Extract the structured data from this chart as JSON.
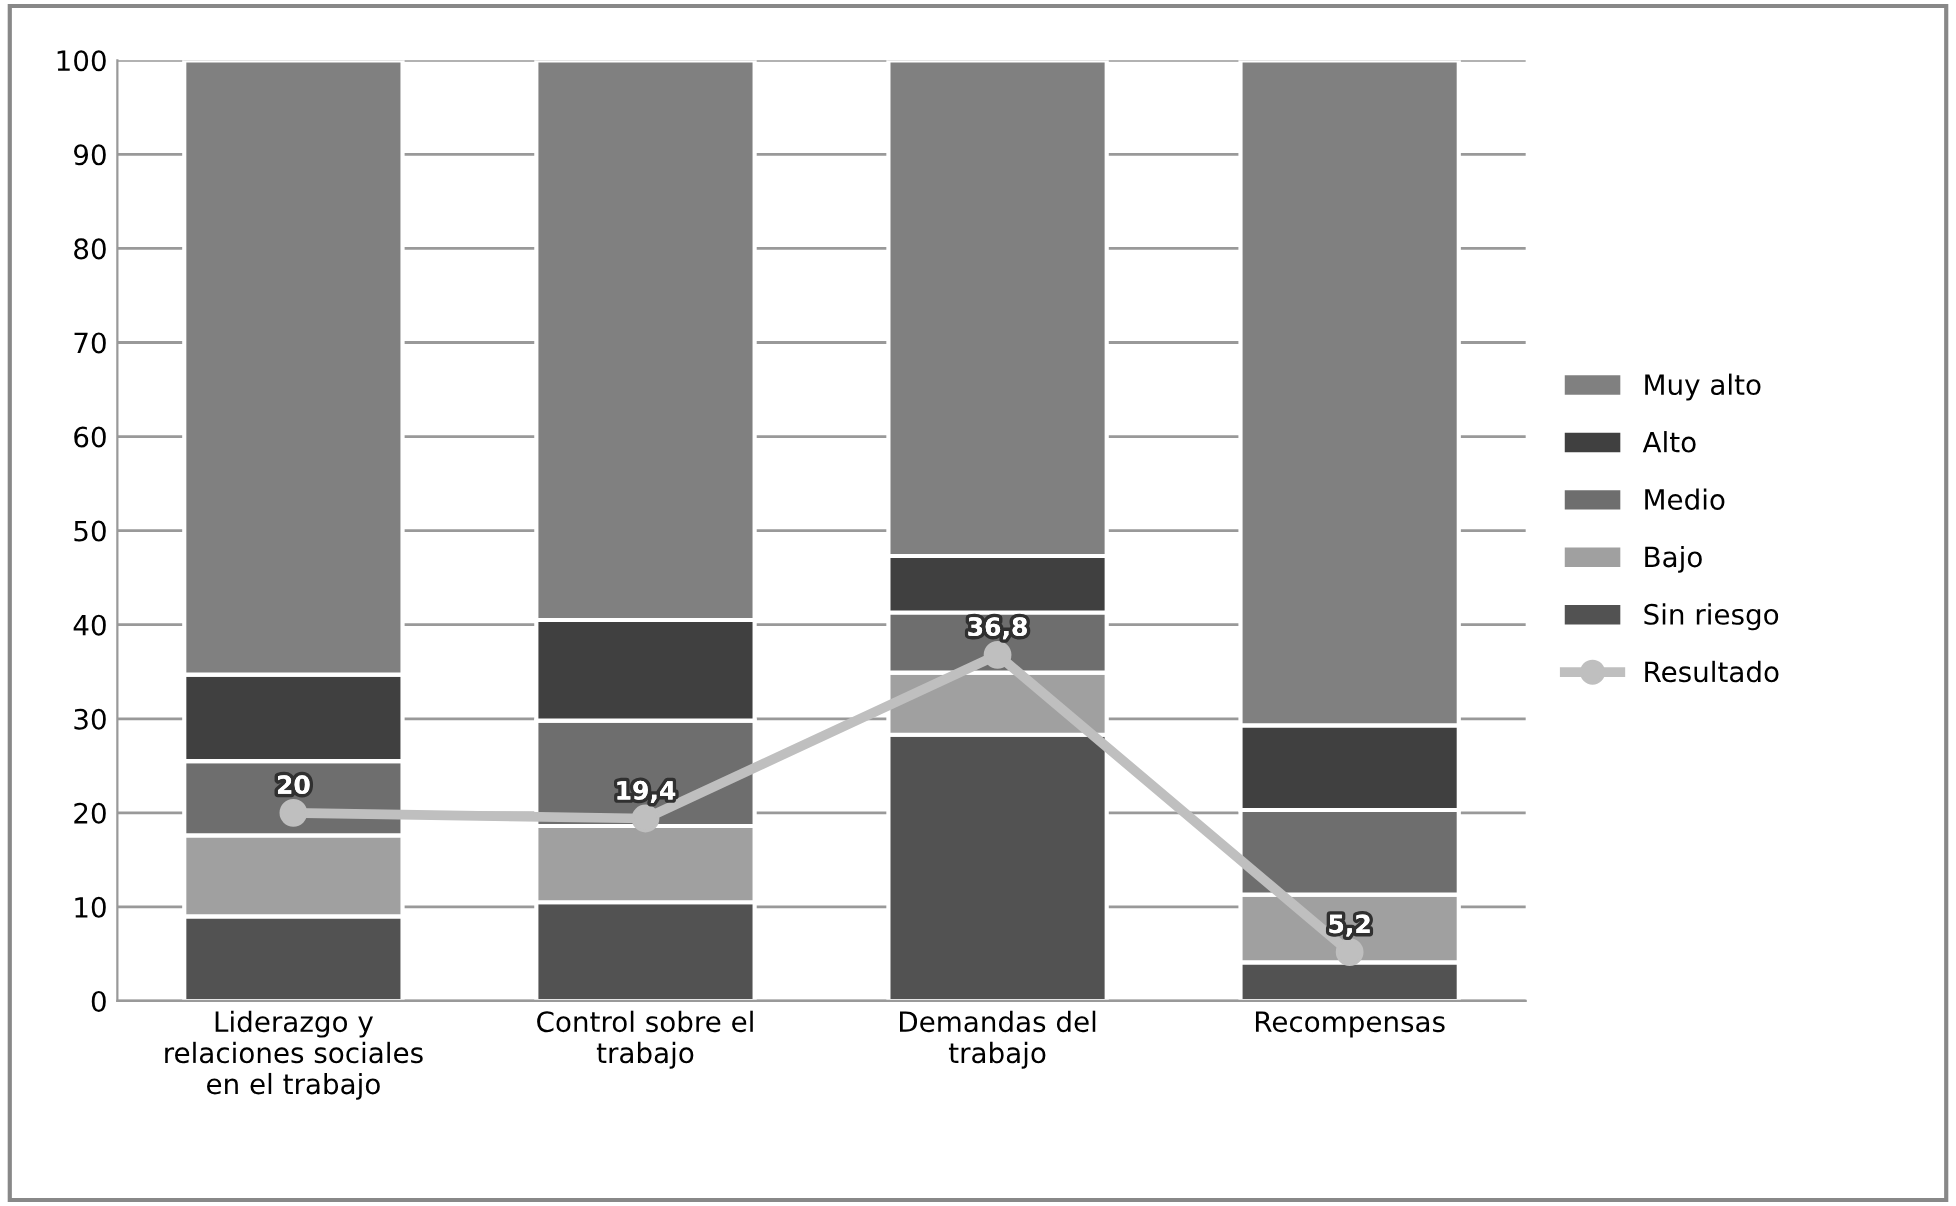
{
  "chart_data": {
    "type": "bar",
    "stacked": true,
    "categories": [
      "Liderazgo y\nrelaciones sociales\nen el trabajo",
      "Control sobre el\ntrabajo",
      "Demandas del\ntrabajo",
      "Recompensas"
    ],
    "series": [
      {
        "name": "Sin riesgo",
        "color": "#525252",
        "values": [
          9.0,
          10.5,
          28.3,
          4.1
        ]
      },
      {
        "name": "Bajo",
        "color": "#a0a0a0",
        "values": [
          8.6,
          8.1,
          6.6,
          7.2
        ]
      },
      {
        "name": "Medio",
        "color": "#6e6e6e",
        "values": [
          7.9,
          11.2,
          6.4,
          9.0
        ]
      },
      {
        "name": "Alto",
        "color": "#404040",
        "values": [
          9.2,
          10.7,
          6.0,
          9.0
        ]
      },
      {
        "name": "Muy alto",
        "color": "#808080",
        "values": [
          65.3,
          59.5,
          52.7,
          70.7
        ]
      },
      {
        "name": "Resultado",
        "type": "line",
        "color": "#bfbfbf",
        "marker": "circle",
        "values": [
          20,
          19.4,
          36.8,
          5.2
        ],
        "value_labels": [
          "20",
          "19,4",
          "36,8",
          "5,2"
        ]
      }
    ],
    "ylim": [
      0,
      100
    ],
    "yticks": [
      0,
      10,
      20,
      30,
      40,
      50,
      60,
      70,
      80,
      90,
      100
    ],
    "grid": "y",
    "legend": "right"
  }
}
